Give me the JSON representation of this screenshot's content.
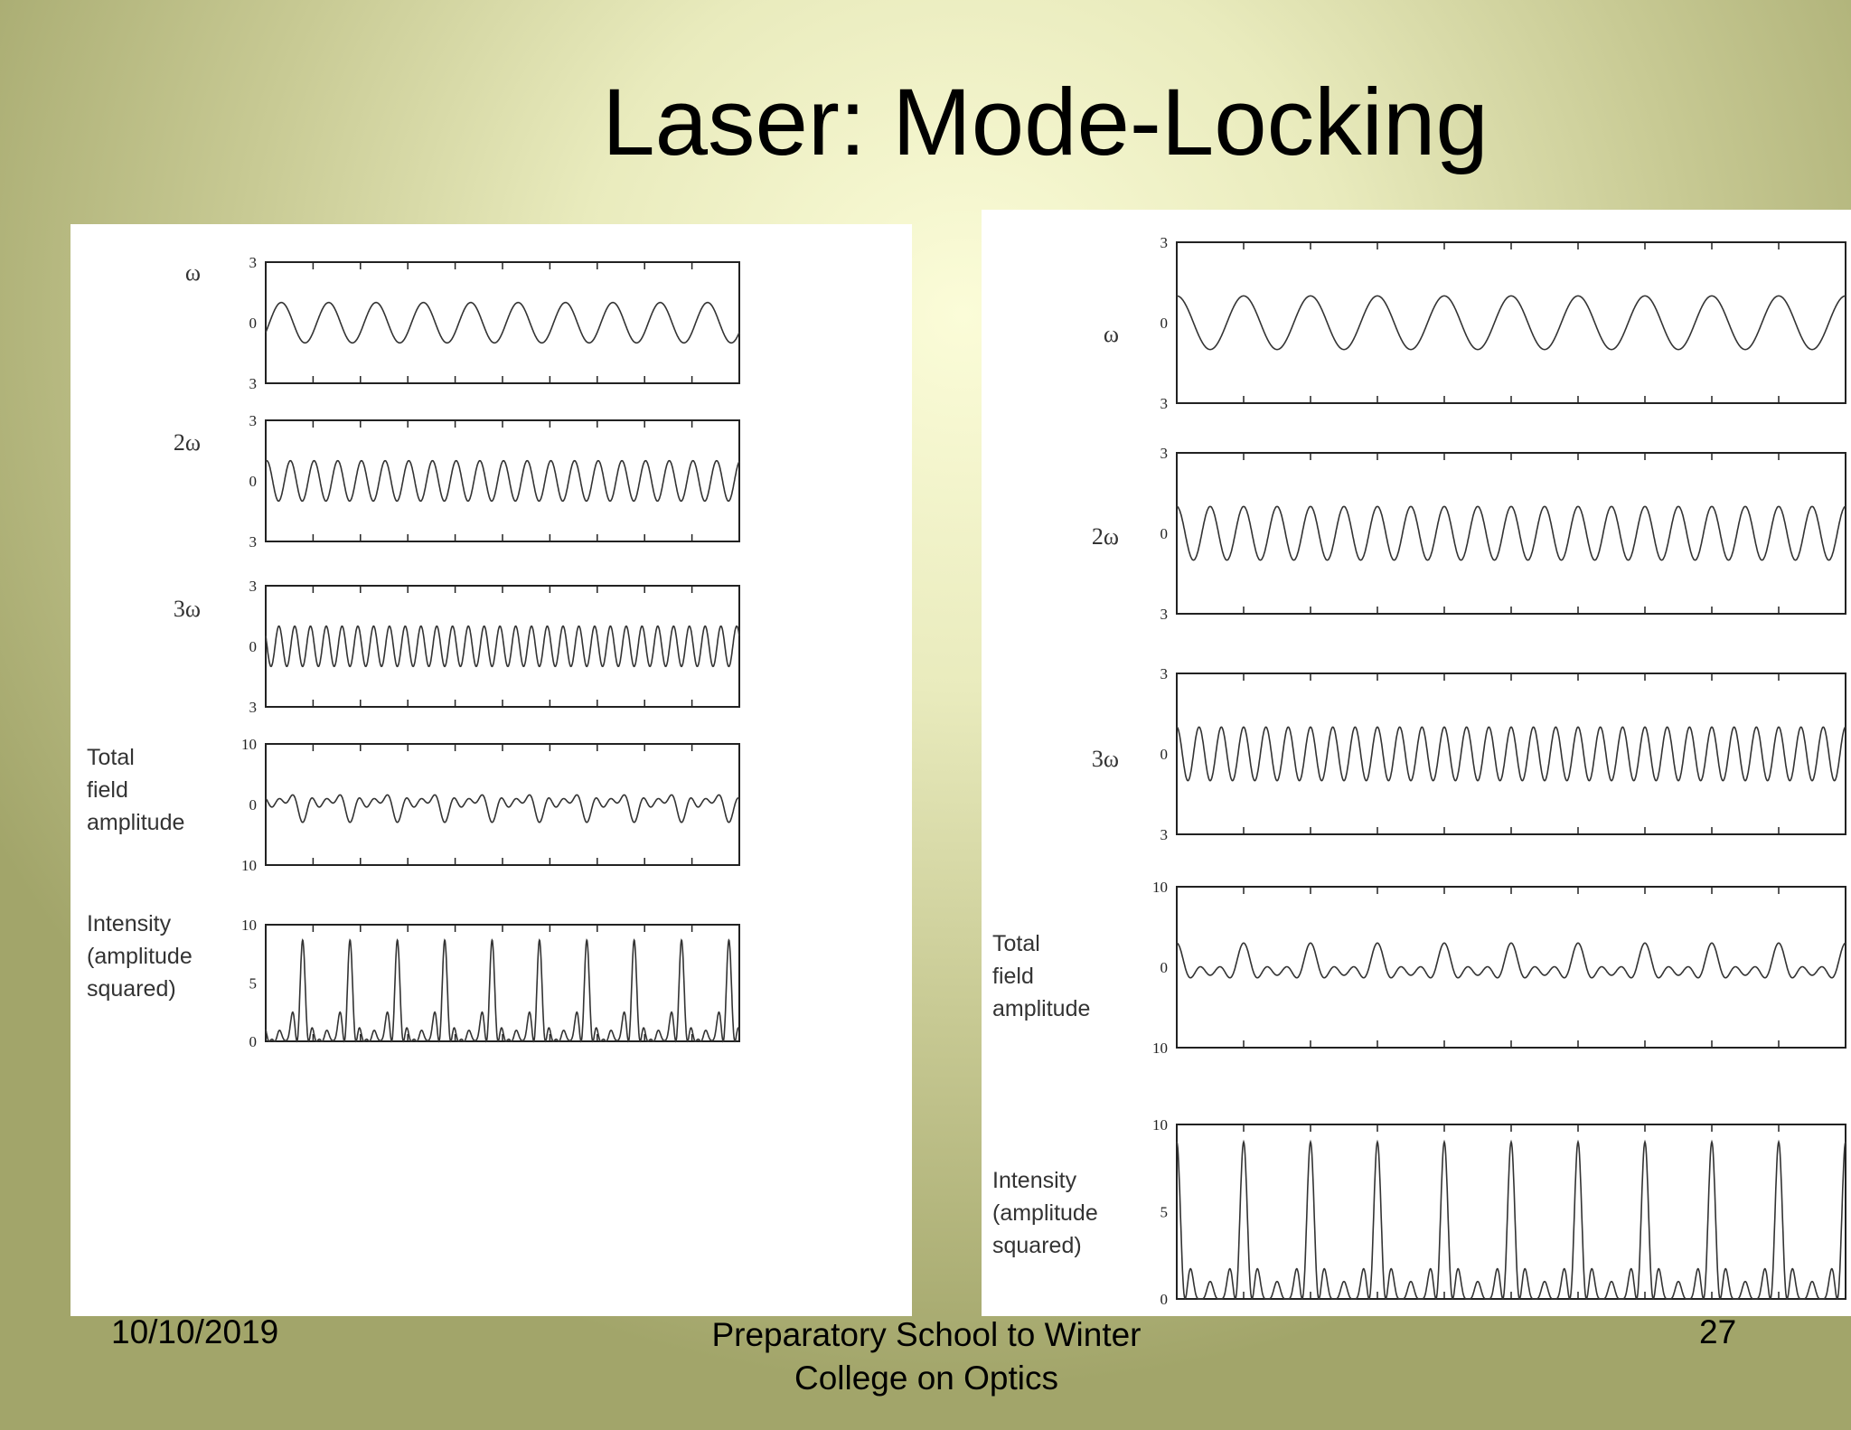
{
  "slide": {
    "title": "Laser: Mode-Locking",
    "footer_date": "10/10/2019",
    "footer_center_line1": "Preparatory School to Winter",
    "footer_center_line2": "College on Optics",
    "page_number": "27"
  },
  "chart_data": [
    {
      "panel": "left",
      "phase_relation": "random",
      "type": "line",
      "subplots": [
        {
          "label_lines": [
            "ω"
          ],
          "y_ticks": [
            "3",
            "0",
            "3"
          ],
          "ylim": [
            -3,
            3
          ],
          "series": [
            {
              "frequency_multiple": 1,
              "amplitude": 1
            }
          ]
        },
        {
          "label_lines": [
            "2ω"
          ],
          "y_ticks": [
            "3",
            "0",
            "3"
          ],
          "ylim": [
            -3,
            3
          ],
          "series": [
            {
              "frequency_multiple": 2,
              "amplitude": 1
            }
          ]
        },
        {
          "label_lines": [
            "3ω"
          ],
          "y_ticks": [
            "3",
            "0",
            "3"
          ],
          "ylim": [
            -3,
            3
          ],
          "series": [
            {
              "frequency_multiple": 3,
              "amplitude": 1
            }
          ]
        },
        {
          "label_lines": [
            "Total",
            "field",
            "amplitude"
          ],
          "y_ticks": [
            "10",
            "0",
            "10"
          ],
          "ylim": [
            -10,
            10
          ],
          "series": [
            {
              "sum_of_modes": [
                1,
                2,
                3
              ]
            }
          ]
        },
        {
          "label_lines": [
            "Intensity",
            "(amplitude",
            "squared)"
          ],
          "y_ticks": [
            "10",
            "5",
            "0"
          ],
          "ylim": [
            0,
            10
          ],
          "series": [
            {
              "square_of_sum": [
                1,
                2,
                3
              ]
            }
          ]
        }
      ]
    },
    {
      "panel": "right",
      "phase_relation": "locked",
      "type": "line",
      "subplots": [
        {
          "label_lines": [
            "ω"
          ],
          "y_ticks": [
            "3",
            "0",
            "3"
          ],
          "ylim": [
            -3,
            3
          ],
          "series": [
            {
              "frequency_multiple": 1,
              "amplitude": 1
            }
          ]
        },
        {
          "label_lines": [
            "2ω"
          ],
          "y_ticks": [
            "3",
            "0",
            "3"
          ],
          "ylim": [
            -3,
            3
          ],
          "series": [
            {
              "frequency_multiple": 2,
              "amplitude": 1
            }
          ]
        },
        {
          "label_lines": [
            "3ω"
          ],
          "y_ticks": [
            "3",
            "0",
            "3"
          ],
          "ylim": [
            -3,
            3
          ],
          "series": [
            {
              "frequency_multiple": 3,
              "amplitude": 1
            }
          ]
        },
        {
          "label_lines": [
            "Total",
            "field",
            "amplitude"
          ],
          "y_ticks": [
            "10",
            "0",
            "10"
          ],
          "ylim": [
            -10,
            10
          ],
          "series": [
            {
              "sum_of_modes": [
                1,
                2,
                3
              ]
            }
          ]
        },
        {
          "label_lines": [
            "Intensity",
            "(amplitude",
            "squared)"
          ],
          "y_ticks": [
            "10",
            "5",
            "0"
          ],
          "ylim": [
            0,
            10
          ],
          "series": [
            {
              "square_of_sum": [
                1,
                2,
                3
              ]
            }
          ]
        }
      ]
    }
  ]
}
